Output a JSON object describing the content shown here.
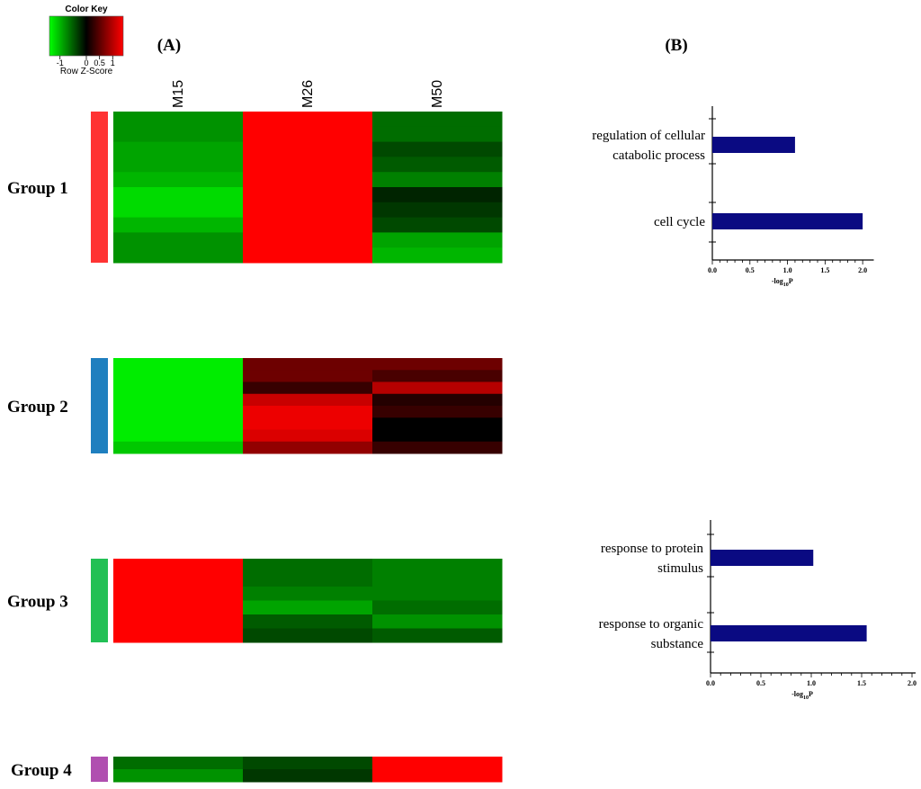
{
  "panel_labels": {
    "a": "(A)",
    "b": "(B)"
  },
  "color_key": {
    "title": "Color Key",
    "axis_label": "Row Z-Score",
    "ticks": [
      -1,
      0,
      0.5,
      1
    ],
    "tick_labels": [
      "-1",
      "0",
      "0.5",
      "1"
    ],
    "range": [
      -1.4,
      1.4
    ],
    "colors": {
      "low": "#00ff00",
      "mid": "#000000",
      "high": "#ff0000"
    }
  },
  "chart_data": [
    {
      "type": "heatmap",
      "title": "",
      "columns": [
        "M15",
        "M26",
        "M50"
      ],
      "groups": [
        {
          "label": "Group 1",
          "side_color": "#ff3333",
          "rows": [
            [
              -0.8,
              1.4,
              -0.6
            ],
            [
              -0.8,
              1.4,
              -0.6
            ],
            [
              -0.9,
              1.4,
              -0.4
            ],
            [
              -0.9,
              1.4,
              -0.5
            ],
            [
              -1.0,
              1.4,
              -0.7
            ],
            [
              -1.2,
              1.4,
              -0.2
            ],
            [
              -1.2,
              1.4,
              -0.3
            ],
            [
              -1.0,
              1.4,
              -0.4
            ],
            [
              -0.8,
              1.4,
              -0.9
            ],
            [
              -0.8,
              1.4,
              -1.0
            ]
          ]
        },
        {
          "label": "Group 2",
          "side_color": "#1f7fbf",
          "rows": [
            [
              -1.3,
              0.6,
              0.6
            ],
            [
              -1.3,
              0.6,
              0.4
            ],
            [
              -1.3,
              0.3,
              1.0
            ],
            [
              -1.3,
              1.1,
              0.2
            ],
            [
              -1.3,
              1.3,
              0.3
            ],
            [
              -1.3,
              1.3,
              0.0
            ],
            [
              -1.3,
              1.2,
              0.0
            ],
            [
              -1.1,
              0.8,
              0.3
            ]
          ]
        },
        {
          "label": "Group 3",
          "side_color": "#22c055",
          "rows": [
            [
              1.4,
              -0.6,
              -0.7
            ],
            [
              1.4,
              -0.6,
              -0.7
            ],
            [
              1.4,
              -0.7,
              -0.7
            ],
            [
              1.4,
              -0.9,
              -0.6
            ],
            [
              1.4,
              -0.5,
              -0.8
            ],
            [
              1.4,
              -0.4,
              -0.5
            ]
          ]
        },
        {
          "label": "Group 4",
          "side_color": "#b04fb0",
          "rows": [
            [
              -0.6,
              -0.4,
              1.4
            ],
            [
              -0.8,
              -0.3,
              1.4
            ]
          ]
        }
      ]
    },
    {
      "type": "bar",
      "orientation": "horizontal",
      "title": "",
      "categories": [
        "regulation of cellular catabolic process",
        "cell cycle"
      ],
      "category_lines": [
        [
          "regulation of cellular",
          "catabolic process"
        ],
        [
          "cell cycle"
        ]
      ],
      "values": [
        1.1,
        2.0
      ],
      "xlabel": {
        "main": "-log",
        "sub": "10",
        "tail": "P"
      },
      "xlim": [
        0,
        2.1
      ],
      "ticks": [
        0.0,
        0.5,
        1.0,
        1.5,
        2.0
      ],
      "tick_labels": [
        "0.0",
        "0.5",
        "1.0",
        "1.5",
        "2.0"
      ],
      "bar_color": "#0a0a82"
    },
    {
      "type": "bar",
      "orientation": "horizontal",
      "title": "",
      "categories": [
        "response to protein stimulus",
        "response to organic substance"
      ],
      "category_lines": [
        [
          "response to protein",
          "stimulus"
        ],
        [
          "response to organic",
          "substance"
        ]
      ],
      "values": [
        1.02,
        1.55
      ],
      "xlabel": {
        "main": "-log",
        "sub": "10",
        "tail": "P"
      },
      "xlim": [
        0,
        2.0
      ],
      "ticks": [
        0.0,
        0.5,
        1.0,
        1.5,
        2.0
      ],
      "tick_labels": [
        "0.0",
        "0.5",
        "1.0",
        "1.5",
        "2.0"
      ],
      "bar_color": "#0a0a82"
    }
  ]
}
